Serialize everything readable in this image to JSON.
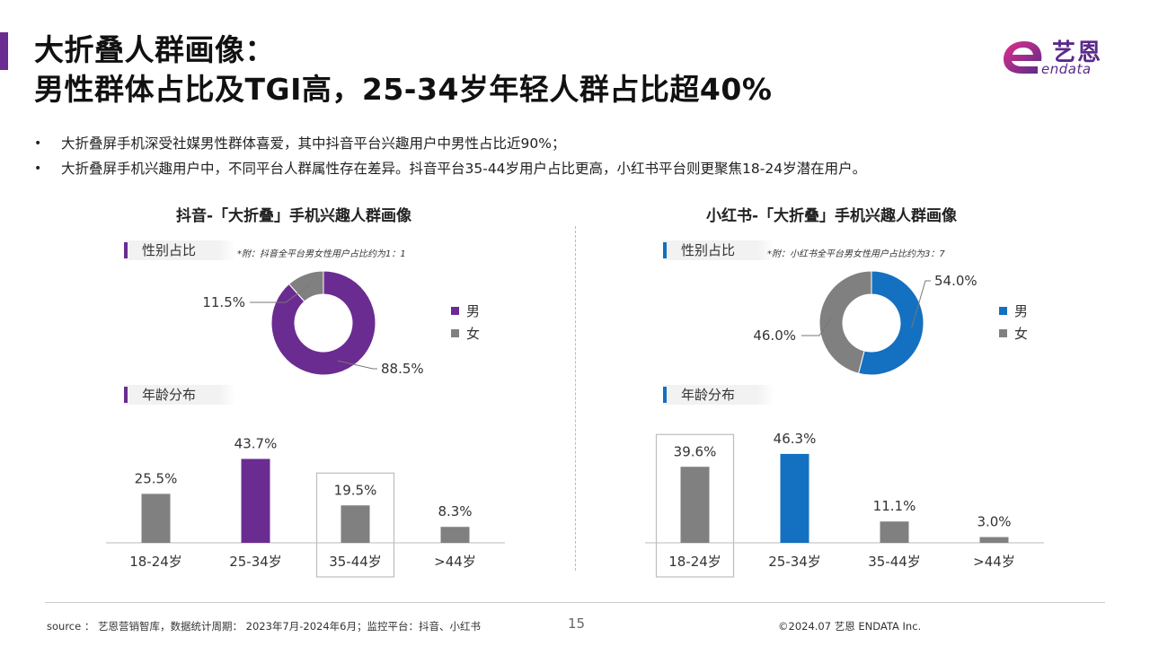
{
  "page": {
    "title_line1": "大折叠人群画像：",
    "title_line2": "男性群体占比及TGI高，25-34岁年轻人群占比超40%",
    "logo_cn": "艺恩",
    "logo_en": "endata",
    "bullets": [
      "大折叠屏手机深受社媒男性群体喜爱，其中抖音平台兴趣用户中男性占比近90%；",
      "大折叠屏手机兴趣用户中，不同平台人群属性存在差异。抖音平台35-44岁用户占比更高，小红书平台则更聚焦18-24岁潜在用户。"
    ],
    "footer": {
      "source": "source ： 艺恩营销智库，数据统计周期： 2023年7月-2024年6月；监控平台：抖音、小红书",
      "page_number": "15",
      "copyright": "©2024.07 艺恩 ENDATA Inc."
    },
    "panels": [
      {
        "title": "抖音-「大折叠」手机兴趣人群画像",
        "gender_label": "性别占比",
        "note": "*附：抖音全平台男女性用户占比约为1：1",
        "age_label": "年龄分布",
        "accent": "#6a2c91",
        "legend": [
          "男",
          "女"
        ]
      },
      {
        "title": "小红书-「大折叠」手机兴趣人群画像",
        "gender_label": "性别占比",
        "note": "*附：小红书全平台男女性用户占比约为3：7",
        "age_label": "年龄分布",
        "accent": "#1470c0",
        "legend": [
          "男",
          "女"
        ]
      }
    ]
  },
  "chart_data": [
    {
      "type": "pie",
      "title": "",
      "categories": [
        "男",
        "女"
      ],
      "values": [
        88.5,
        11.5
      ],
      "labels": [
        "88.5%",
        "11.5%"
      ],
      "colors": [
        "#6a2c91",
        "#808080"
      ],
      "donut": true
    },
    {
      "type": "bar",
      "title": "",
      "categories": [
        "18-24岁",
        "25-34岁",
        "35-44岁",
        ">44岁"
      ],
      "values": [
        25.5,
        43.7,
        19.5,
        8.3
      ],
      "labels": [
        "25.5%",
        "43.7%",
        "19.5%",
        "8.3%"
      ],
      "colors": [
        "#808080",
        "#6a2c91",
        "#808080",
        "#808080"
      ],
      "highlight_index": 2,
      "ylim": [
        0,
        50
      ]
    },
    {
      "type": "pie",
      "title": "",
      "categories": [
        "男",
        "女"
      ],
      "values": [
        54.0,
        46.0
      ],
      "labels": [
        "54.0%",
        "46.0%"
      ],
      "colors": [
        "#1470c0",
        "#808080"
      ],
      "donut": true
    },
    {
      "type": "bar",
      "title": "",
      "categories": [
        "18-24岁",
        "25-34岁",
        "35-44岁",
        ">44岁"
      ],
      "values": [
        39.6,
        46.3,
        11.1,
        3.0
      ],
      "labels": [
        "39.6%",
        "46.3%",
        "11.1%",
        "3.0%"
      ],
      "colors": [
        "#808080",
        "#1470c0",
        "#808080",
        "#808080"
      ],
      "highlight_index": 0,
      "ylim": [
        0,
        50
      ]
    }
  ]
}
